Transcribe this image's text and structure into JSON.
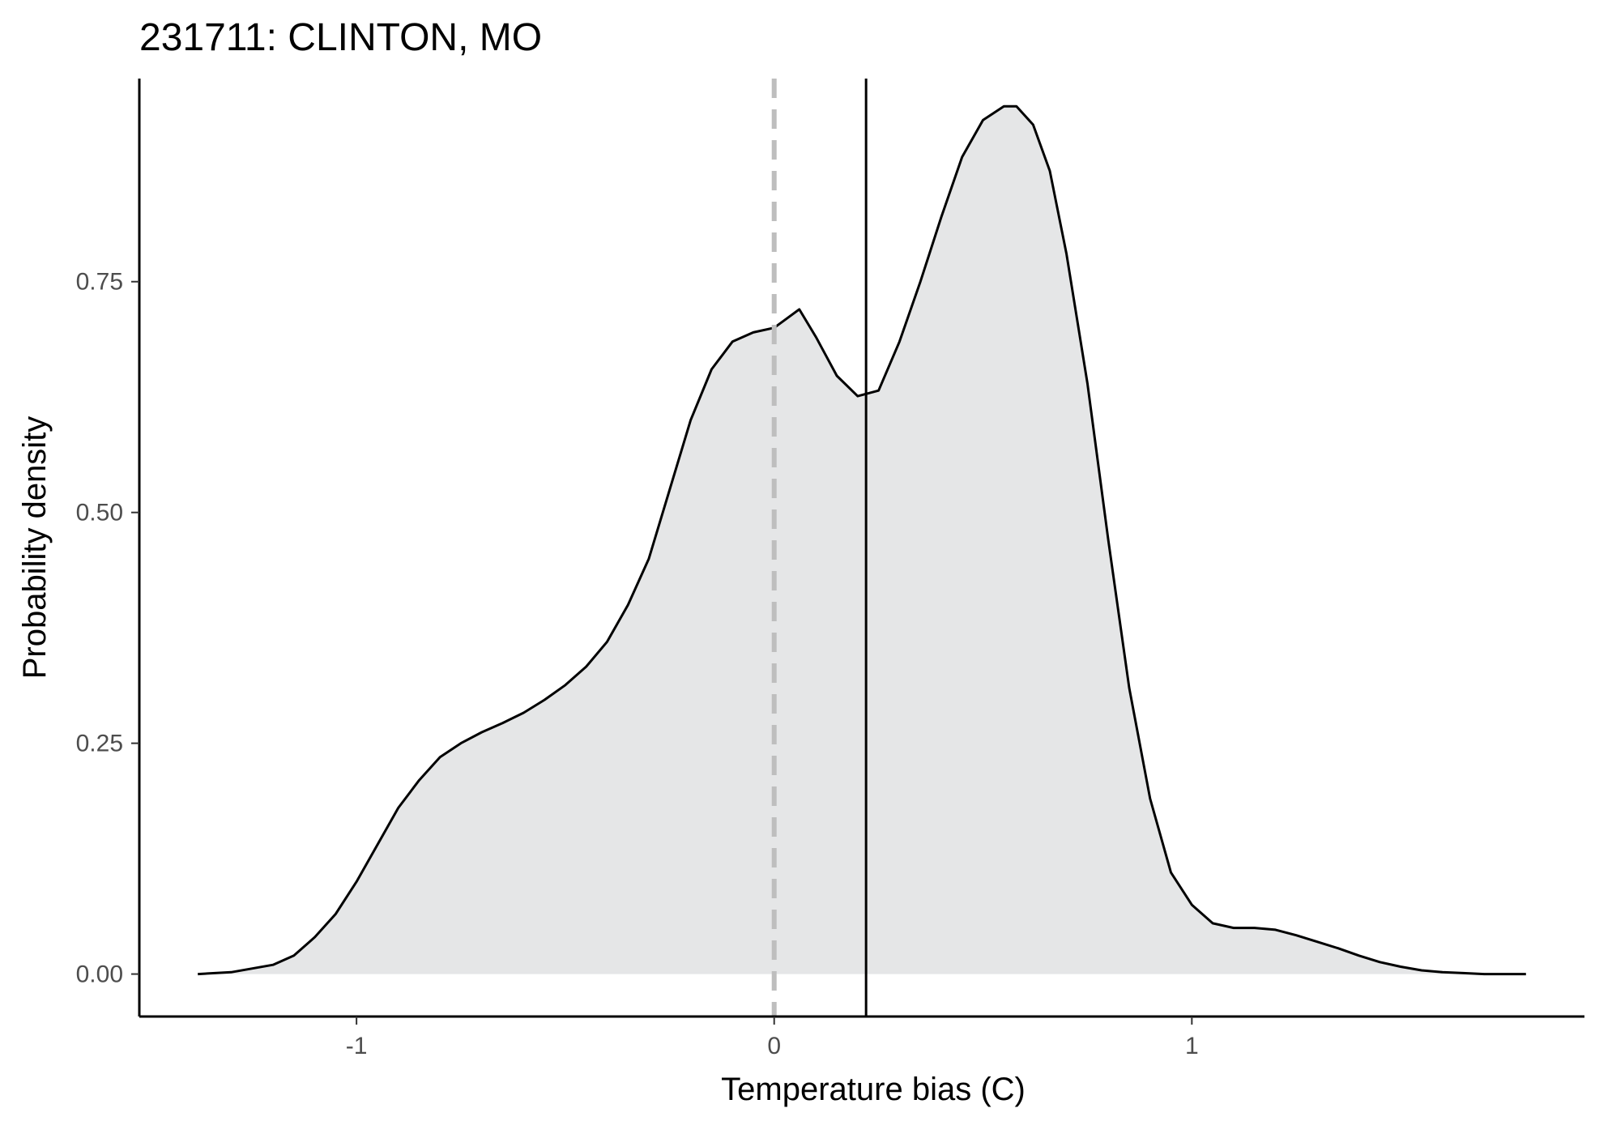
{
  "chart_data": {
    "type": "area",
    "title": "231711: CLINTON, MO",
    "xlabel": "Temperature bias (C)",
    "ylabel": "Probability density",
    "xlim": [
      -1.52,
      1.94
    ],
    "ylim": [
      -0.046,
      0.97
    ],
    "x_ticks": [
      {
        "value": -1,
        "label": "-1"
      },
      {
        "value": 0,
        "label": "0"
      },
      {
        "value": 1,
        "label": "1"
      }
    ],
    "y_ticks": [
      {
        "value": 0,
        "label": "0.00"
      },
      {
        "value": 0.25,
        "label": "0.25"
      },
      {
        "value": 0.5,
        "label": "0.50"
      },
      {
        "value": 0.75,
        "label": "0.75"
      }
    ],
    "grid": false,
    "reference_lines": [
      {
        "x": 0,
        "style": "dashed",
        "color": "#bebebe"
      },
      {
        "x": 0.22,
        "style": "solid",
        "color": "#000000"
      }
    ],
    "series": [
      {
        "fill": "#e5e6e7",
        "line_color": "#000000",
        "x": [
          -1.38,
          -1.3,
          -1.2,
          -1.15,
          -1.1,
          -1.05,
          -1.0,
          -0.95,
          -0.9,
          -0.85,
          -0.8,
          -0.75,
          -0.7,
          -0.65,
          -0.6,
          -0.55,
          -0.5,
          -0.45,
          -0.4,
          -0.35,
          -0.3,
          -0.25,
          -0.2,
          -0.15,
          -0.1,
          -0.05,
          0.0,
          0.03,
          0.06,
          0.1,
          0.15,
          0.2,
          0.25,
          0.3,
          0.35,
          0.4,
          0.45,
          0.5,
          0.55,
          0.58,
          0.62,
          0.66,
          0.7,
          0.75,
          0.8,
          0.85,
          0.9,
          0.95,
          1.0,
          1.05,
          1.1,
          1.15,
          1.2,
          1.25,
          1.3,
          1.35,
          1.4,
          1.45,
          1.5,
          1.55,
          1.6,
          1.65,
          1.7,
          1.75,
          1.8
        ],
        "y": [
          0.0,
          0.002,
          0.01,
          0.02,
          0.04,
          0.065,
          0.1,
          0.14,
          0.18,
          0.21,
          0.235,
          0.25,
          0.262,
          0.272,
          0.283,
          0.297,
          0.313,
          0.333,
          0.36,
          0.4,
          0.45,
          0.525,
          0.6,
          0.655,
          0.685,
          0.695,
          0.7,
          0.71,
          0.72,
          0.69,
          0.648,
          0.626,
          0.632,
          0.685,
          0.75,
          0.82,
          0.885,
          0.925,
          0.94,
          0.94,
          0.92,
          0.87,
          0.78,
          0.64,
          0.47,
          0.31,
          0.19,
          0.11,
          0.075,
          0.055,
          0.05,
          0.05,
          0.048,
          0.042,
          0.035,
          0.028,
          0.02,
          0.013,
          0.008,
          0.004,
          0.002,
          0.001,
          0.0,
          0.0,
          0.0
        ]
      }
    ]
  }
}
